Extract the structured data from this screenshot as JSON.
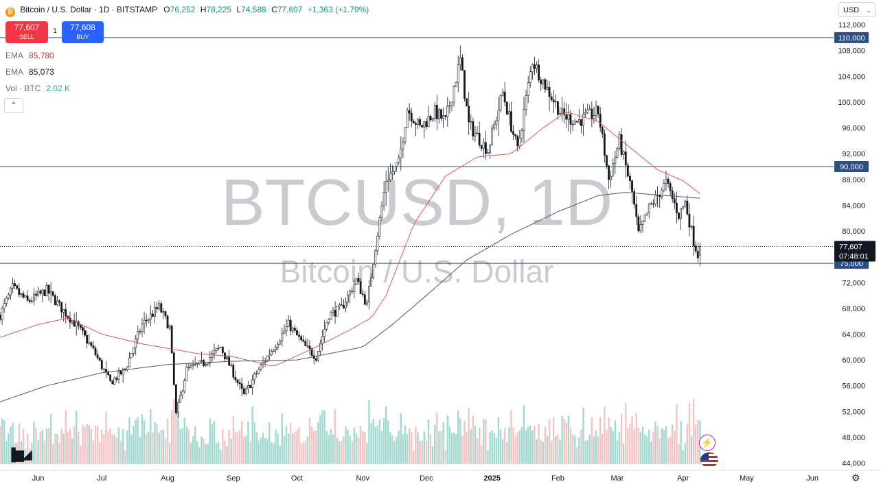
{
  "header": {
    "symbol_desc": "Bitcoin / U.S. Dollar · 1D · BITSTAMP",
    "open_label": "O",
    "open": "76,252",
    "high_label": "H",
    "high": "78,225",
    "low_label": "L",
    "low": "74,588",
    "close_label": "C",
    "close": "77,607",
    "change": "+1,363 (+1.79%)"
  },
  "trade": {
    "sell_price": "77,607",
    "sell_label": "SELL",
    "buy_price": "77,608",
    "buy_label": "BUY",
    "spread": "1"
  },
  "indicators": [
    {
      "name": "EMA",
      "value": "85,780"
    },
    {
      "name": "EMA",
      "value": "85,073"
    },
    {
      "name": "Vol · BTC",
      "value": "2.02 K"
    }
  ],
  "currency": "USD",
  "watermark": {
    "ticker": "BTCUSD, 1D",
    "name": "Bitcoin / U.S. Dollar"
  },
  "price_badge": {
    "price": "77,607",
    "countdown": "07:48:01"
  },
  "colors": {
    "up": "#131722",
    "down": "#131722",
    "ema_fast": "#e05555",
    "ema_slow": "#555555",
    "hline": "#2a4e8a",
    "badge": "#2a4e8a",
    "last_price_badge": "#131722",
    "vol_up": "#8fd3c9",
    "vol_down": "#f2b8b8"
  },
  "icons": [
    "tradingview-logo-icon",
    "settings-gear-icon",
    "lightning-bolt-icon",
    "us-flag-icon",
    "chevron-down-icon",
    "chevron-up-icon"
  ],
  "chart_data": {
    "type": "candlestick",
    "timeframe": "1D",
    "y_axis": {
      "ticks": [
        44000,
        48000,
        52000,
        56000,
        60000,
        64000,
        68000,
        72000,
        76000,
        80000,
        84000,
        88000,
        92000,
        96000,
        100000,
        104000,
        108000,
        112000
      ],
      "tick_labels": [
        "44,000",
        "48,000",
        "52,000",
        "56,000",
        "60,000",
        "64,000",
        "68,000",
        "72,000",
        "76,000",
        "80,000",
        "84,000",
        "88,000",
        "92,000",
        "96,000",
        "100,000",
        "104,000",
        "108,000",
        "112,000"
      ],
      "range": [
        43000,
        113500
      ]
    },
    "x_axis": {
      "labels": [
        "Jun",
        "Jul",
        "Aug",
        "Sep",
        "Oct",
        "Nov",
        "Dec",
        "2025",
        "Feb",
        "Mar",
        "Apr",
        "May",
        "Jun"
      ],
      "dates": [
        "2024-06-01",
        "2024-07-01",
        "2024-08-01",
        "2024-09-01",
        "2024-10-01",
        "2024-11-01",
        "2024-12-01",
        "2025-01-01",
        "2025-02-01",
        "2025-03-01",
        "2025-04-01",
        "2025-05-01",
        "2025-06-01"
      ],
      "range": [
        "2024-05-14",
        "2025-06-11"
      ]
    },
    "horizontal_lines": [
      {
        "value": 110000,
        "label": "110,000"
      },
      {
        "value": 90000,
        "label": "90,000"
      },
      {
        "value": 75000,
        "label": "75,000"
      }
    ],
    "last_price": 77607,
    "series": [
      {
        "name": "BTCUSD",
        "kind": "candles",
        "points": [
          [
            "2024-05-14",
            67000
          ],
          [
            "2024-05-20",
            71200
          ],
          [
            "2024-05-27",
            69000
          ],
          [
            "2024-06-05",
            70800
          ],
          [
            "2024-06-12",
            68000
          ],
          [
            "2024-06-20",
            65000
          ],
          [
            "2024-06-27",
            61500
          ],
          [
            "2024-07-05",
            56500
          ],
          [
            "2024-07-12",
            58500
          ],
          [
            "2024-07-20",
            65500
          ],
          [
            "2024-07-28",
            68200
          ],
          [
            "2024-08-02",
            65000
          ],
          [
            "2024-08-05",
            51500
          ],
          [
            "2024-08-10",
            58500
          ],
          [
            "2024-08-18",
            59500
          ],
          [
            "2024-08-26",
            62000
          ],
          [
            "2024-09-06",
            54500
          ],
          [
            "2024-09-12",
            58000
          ],
          [
            "2024-09-20",
            62000
          ],
          [
            "2024-09-27",
            65500
          ],
          [
            "2024-10-05",
            62000
          ],
          [
            "2024-10-10",
            60500
          ],
          [
            "2024-10-16",
            67000
          ],
          [
            "2024-10-22",
            68000
          ],
          [
            "2024-10-29",
            72400
          ],
          [
            "2024-11-03",
            68500
          ],
          [
            "2024-11-06",
            75500
          ],
          [
            "2024-11-12",
            88000
          ],
          [
            "2024-11-18",
            90500
          ],
          [
            "2024-11-22",
            99000
          ],
          [
            "2024-11-28",
            96000
          ],
          [
            "2024-12-05",
            98500
          ],
          [
            "2024-12-10",
            97000
          ],
          [
            "2024-12-17",
            106500
          ],
          [
            "2024-12-21",
            96500
          ],
          [
            "2024-12-30",
            92500
          ],
          [
            "2025-01-06",
            101500
          ],
          [
            "2025-01-13",
            92500
          ],
          [
            "2025-01-20",
            106500
          ],
          [
            "2025-01-27",
            102000
          ],
          [
            "2025-02-03",
            98000
          ],
          [
            "2025-02-10",
            97000
          ],
          [
            "2025-02-20",
            98500
          ],
          [
            "2025-02-25",
            88000
          ],
          [
            "2025-03-02",
            94000
          ],
          [
            "2025-03-08",
            86000
          ],
          [
            "2025-03-11",
            79500
          ],
          [
            "2025-03-16",
            83500
          ],
          [
            "2025-03-24",
            87500
          ],
          [
            "2025-03-30",
            82500
          ],
          [
            "2025-04-02",
            84500
          ],
          [
            "2025-04-06",
            78500
          ],
          [
            "2025-04-08",
            76300
          ],
          [
            "2025-04-09",
            77607
          ]
        ]
      },
      {
        "name": "EMA",
        "kind": "line",
        "points": [
          [
            "2024-05-14",
            63500
          ],
          [
            "2024-06-01",
            65500
          ],
          [
            "2024-06-15",
            66500
          ],
          [
            "2024-07-01",
            64000
          ],
          [
            "2024-07-20",
            62500
          ],
          [
            "2024-08-15",
            61000
          ],
          [
            "2024-09-01",
            60500
          ],
          [
            "2024-09-20",
            59000
          ],
          [
            "2024-10-10",
            62000
          ],
          [
            "2024-10-25",
            64500
          ],
          [
            "2024-11-05",
            66500
          ],
          [
            "2024-11-12",
            70000
          ],
          [
            "2024-11-25",
            81000
          ],
          [
            "2024-12-10",
            88500
          ],
          [
            "2024-12-25",
            91500
          ],
          [
            "2025-01-10",
            92000
          ],
          [
            "2025-01-25",
            96000
          ],
          [
            "2025-02-05",
            98500
          ],
          [
            "2025-02-20",
            97000
          ],
          [
            "2025-03-05",
            93500
          ],
          [
            "2025-03-20",
            89500
          ],
          [
            "2025-04-01",
            87800
          ],
          [
            "2025-04-09",
            85780
          ]
        ]
      },
      {
        "name": "EMA",
        "kind": "line",
        "points": [
          [
            "2024-05-14",
            53500
          ],
          [
            "2024-06-05",
            56000
          ],
          [
            "2024-07-01",
            58000
          ],
          [
            "2024-08-01",
            59300
          ],
          [
            "2024-09-01",
            59800
          ],
          [
            "2024-10-01",
            60000
          ],
          [
            "2024-11-01",
            62000
          ],
          [
            "2024-11-15",
            65500
          ],
          [
            "2024-12-01",
            70000
          ],
          [
            "2024-12-20",
            75500
          ],
          [
            "2025-01-10",
            79500
          ],
          [
            "2025-02-01",
            83000
          ],
          [
            "2025-02-20",
            85500
          ],
          [
            "2025-03-05",
            86000
          ],
          [
            "2025-04-09",
            85073
          ]
        ]
      }
    ],
    "volume": {
      "unit": "BTC",
      "last": "2.02 K"
    },
    "grid": false,
    "legend": "top-left"
  }
}
